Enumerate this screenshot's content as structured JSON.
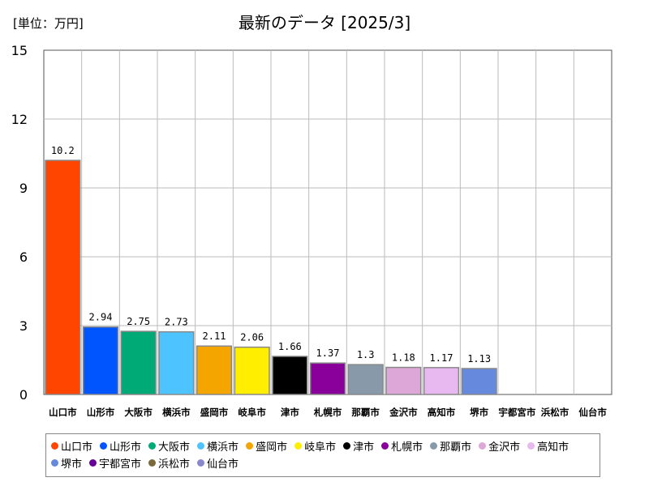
{
  "unit_label": "[単位：万円]",
  "title": "最新のデータ [2025/3]",
  "chart_data": {
    "type": "bar",
    "categories": [
      "山口市",
      "山形市",
      "大阪市",
      "横浜市",
      "盛岡市",
      "岐阜市",
      "津市",
      "札幌市",
      "那覇市",
      "金沢市",
      "高知市",
      "堺市",
      "宇都宮市",
      "浜松市",
      "仙台市"
    ],
    "values": [
      10.2,
      2.94,
      2.75,
      2.73,
      2.11,
      2.06,
      1.66,
      1.37,
      1.3,
      1.18,
      1.17,
      1.13,
      null,
      null,
      null
    ],
    "value_labels": [
      "10.2",
      "2.94",
      "2.75",
      "2.73",
      "2.11",
      "2.06",
      "1.66",
      "1.37",
      "1.3",
      "1.18",
      "1.17",
      "1.13",
      "",
      "",
      ""
    ],
    "colors": [
      "#ff4500",
      "#0055ff",
      "#00aa77",
      "#4dc3ff",
      "#f4a500",
      "#ffee00",
      "#000000",
      "#880099",
      "#8899aa",
      "#dda8d8",
      "#e8b8f0",
      "#6688dd",
      "#660099",
      "#7a6a3a",
      "#8888cc"
    ],
    "ylim": [
      0,
      15
    ],
    "yticks": [
      "0",
      "3",
      "6",
      "9",
      "12",
      "15"
    ],
    "grid": true,
    "legend_position": "bottom"
  }
}
